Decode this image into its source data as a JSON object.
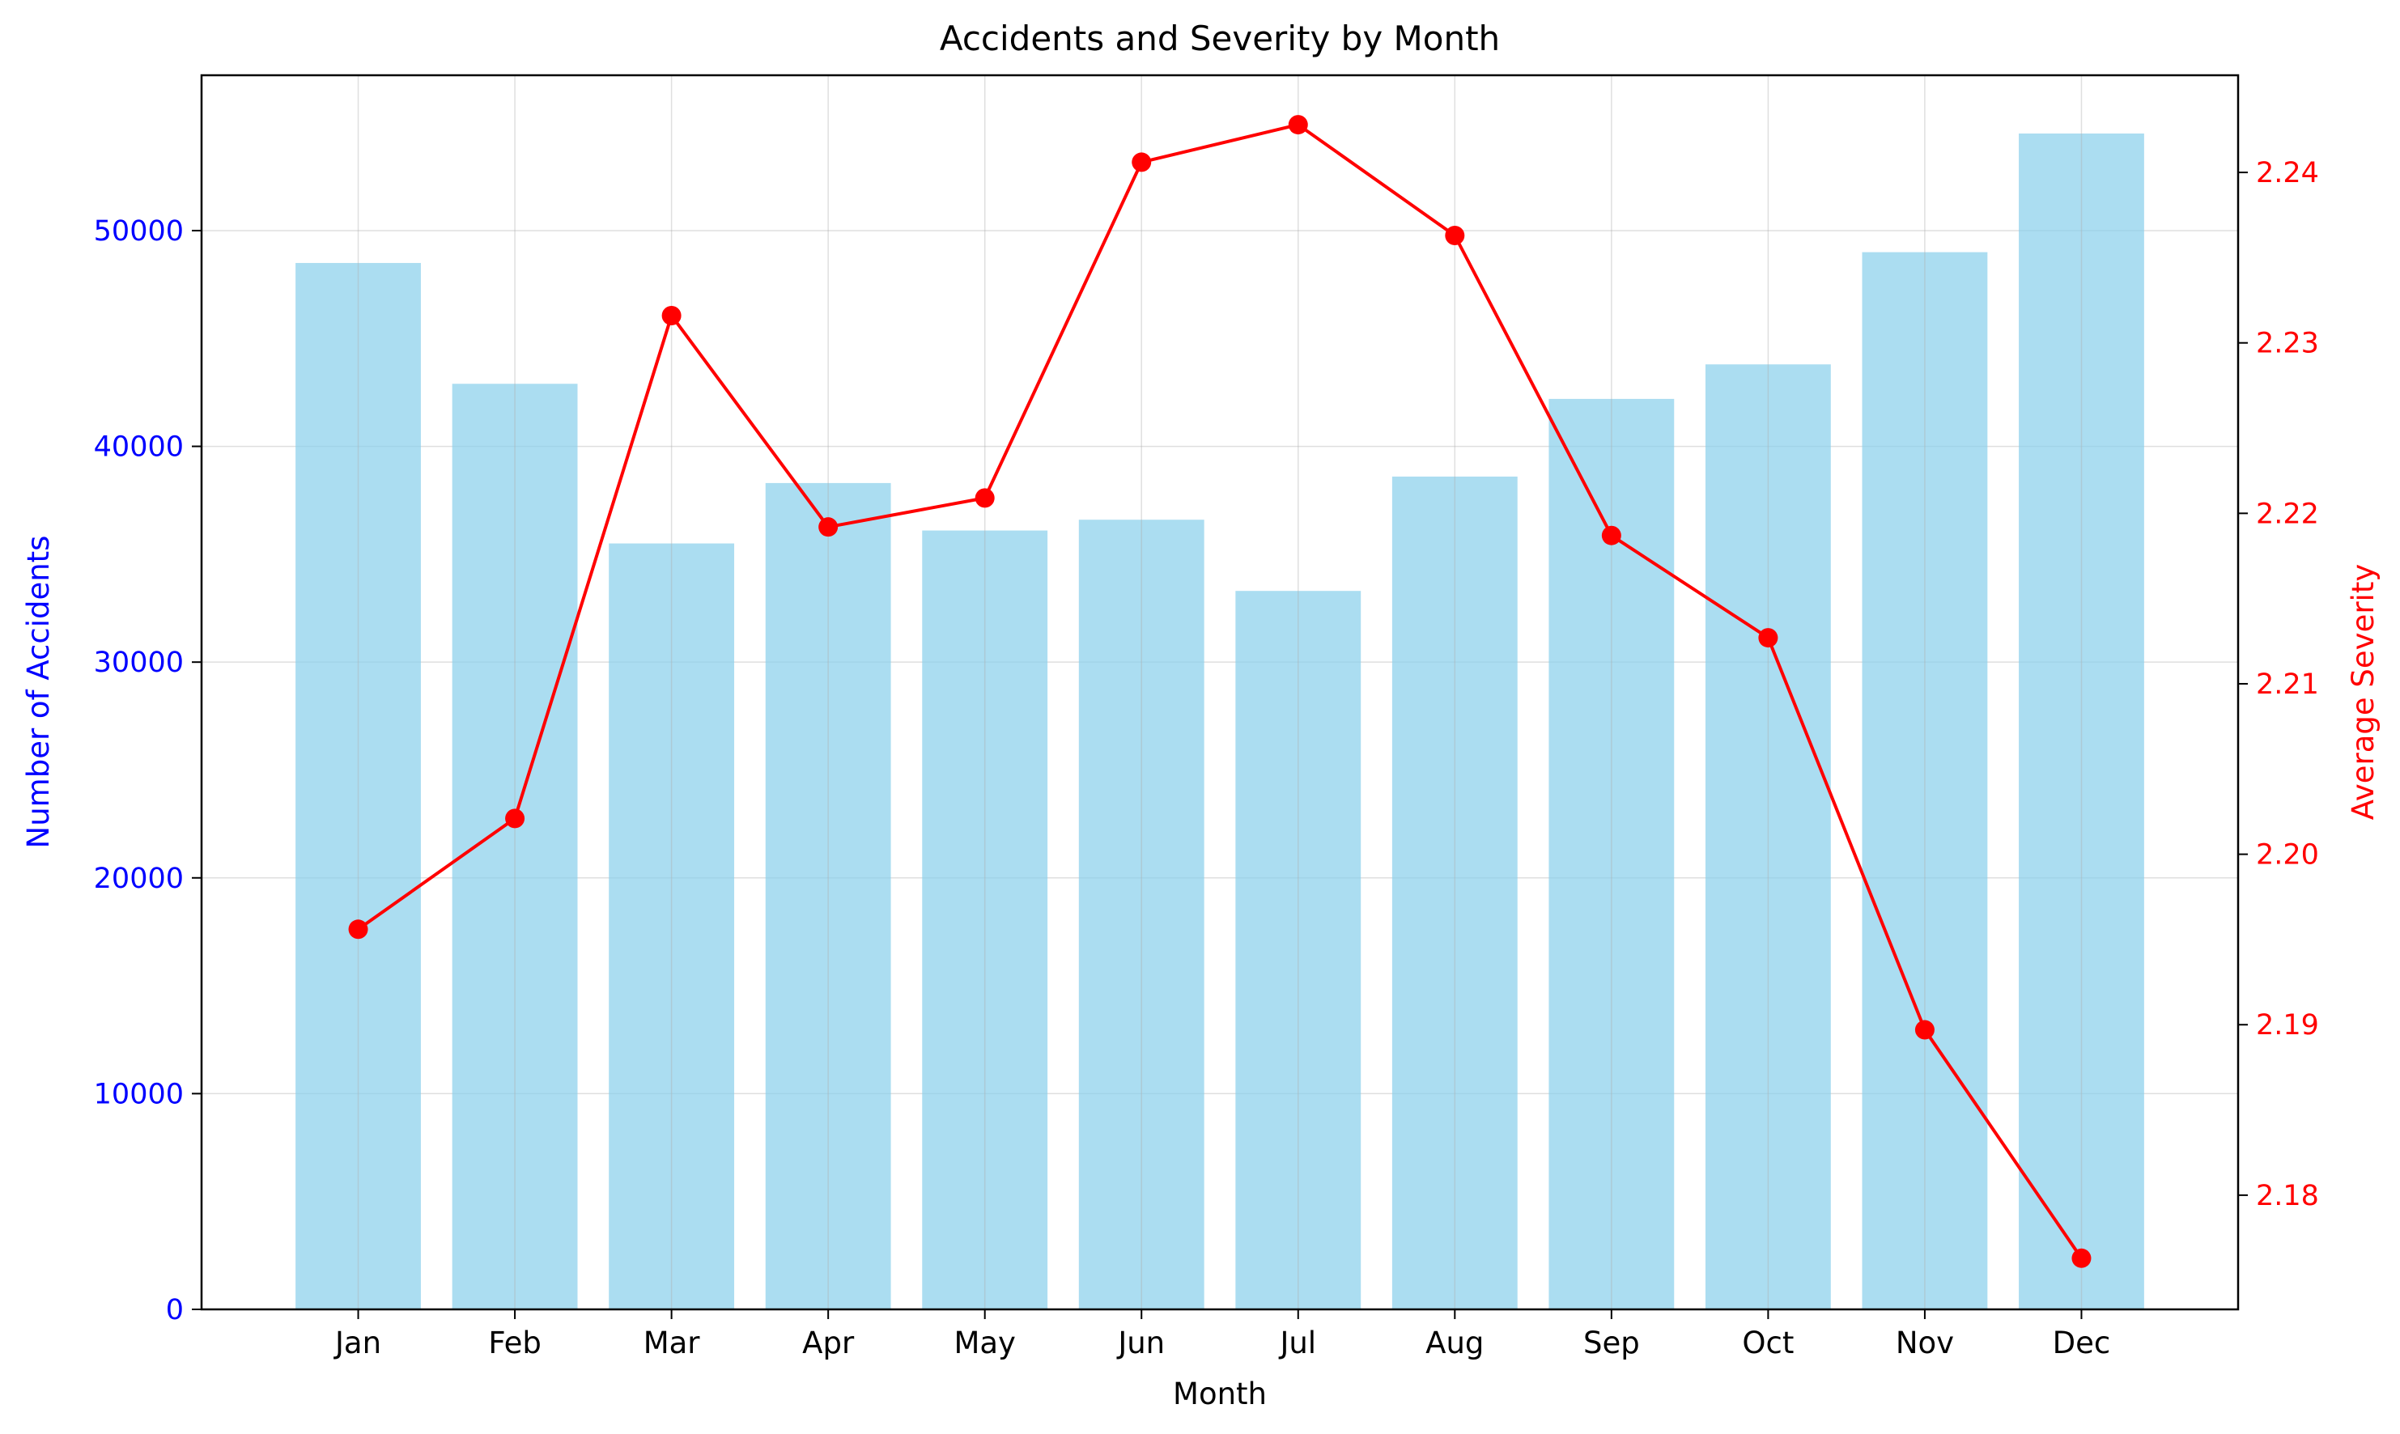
{
  "chart_data": {
    "type": "bar",
    "title": "Accidents and Severity by Month",
    "xlabel": "Month",
    "ylabel": "Number of Accidents",
    "y2label": "Average Severity",
    "categories": [
      "Jan",
      "Feb",
      "Mar",
      "Apr",
      "May",
      "Jun",
      "Jul",
      "Aug",
      "Sep",
      "Oct",
      "Nov",
      "Dec"
    ],
    "series": [
      {
        "type": "bar",
        "axis": "left",
        "color": "#87CEEB",
        "values": [
          48500,
          42900,
          35500,
          38300,
          36100,
          36600,
          33300,
          38600,
          42200,
          43800,
          49000,
          54500
        ]
      },
      {
        "type": "line",
        "axis": "right",
        "color": "#FF0000",
        "marker": "circle",
        "values": [
          2.1956,
          2.2021,
          2.2316,
          2.2192,
          2.2209,
          2.2406,
          2.2428,
          2.2363,
          2.2187,
          2.2127,
          2.1897,
          2.1763
        ]
      }
    ],
    "ylim": [
      0,
      57200
    ],
    "y2lim": [
      2.1733,
      2.2457
    ],
    "yticks": [
      0,
      10000,
      20000,
      30000,
      40000,
      50000
    ],
    "y2ticks": [
      2.18,
      2.19,
      2.2,
      2.21,
      2.22,
      2.23,
      2.24
    ],
    "ytick_color": "#0000FF",
    "y2tick_color": "#FF0000",
    "grid": true
  }
}
